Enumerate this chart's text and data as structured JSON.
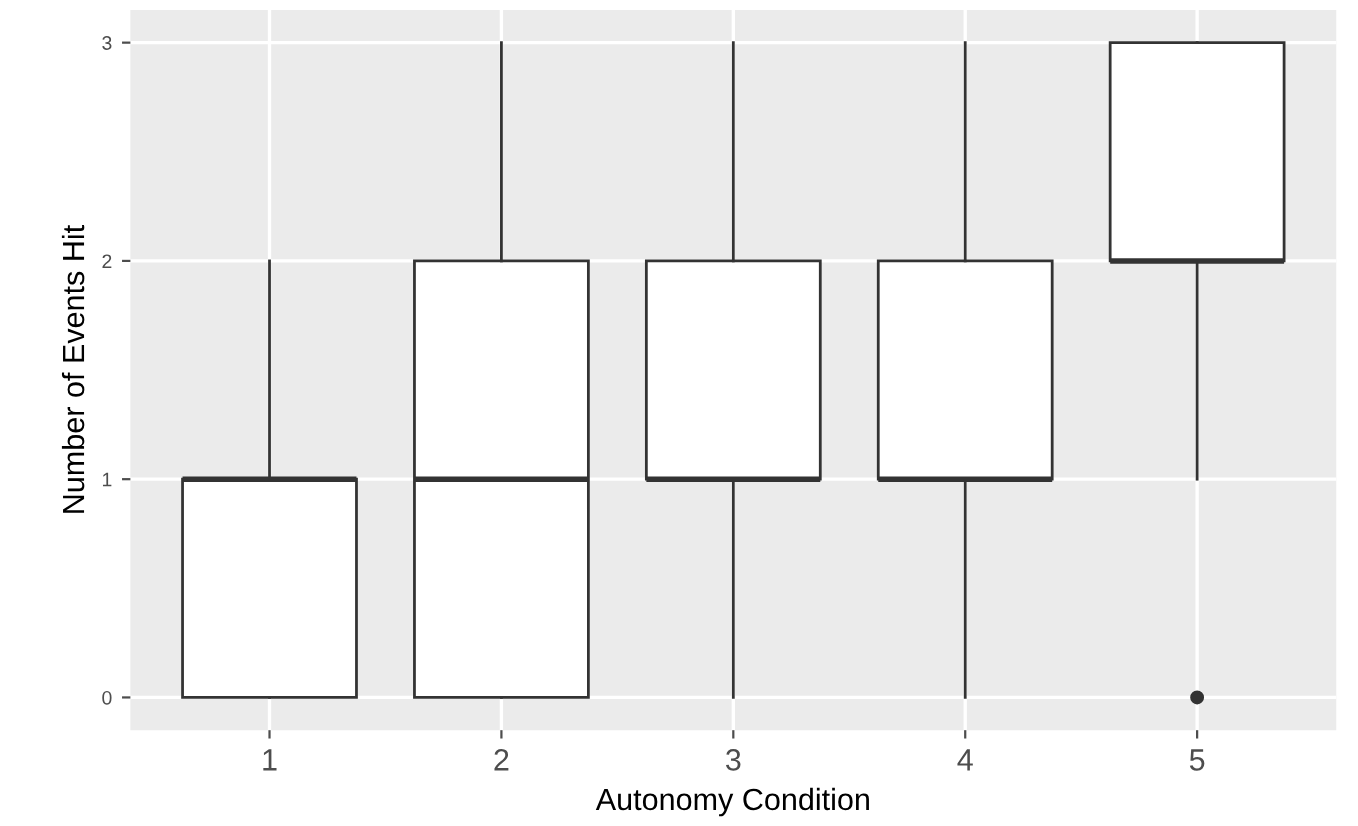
{
  "chart_data": {
    "type": "box",
    "xlabel": "Autonomy Condition",
    "ylabel": "Number of Events Hit",
    "categories": [
      "1",
      "2",
      "3",
      "4",
      "5"
    ],
    "boxes": [
      {
        "low": 0,
        "q1": 0,
        "median": 1,
        "q3": 1,
        "high": 2
      },
      {
        "low": 0,
        "q1": 0,
        "median": 1,
        "q3": 2,
        "high": 3
      },
      {
        "low": 0,
        "q1": 1,
        "median": 1,
        "q3": 2,
        "high": 3
      },
      {
        "low": 0,
        "q1": 1,
        "median": 1,
        "q3": 2,
        "high": 3
      },
      {
        "low": 1,
        "q1": 2,
        "median": 2,
        "q3": 3,
        "high": 3,
        "outliers": [
          0
        ]
      }
    ],
    "color": "#ffffff",
    "ylim": [
      -0.15,
      3.15
    ],
    "yticks": [
      0,
      1,
      2,
      3
    ],
    "grid": true
  }
}
